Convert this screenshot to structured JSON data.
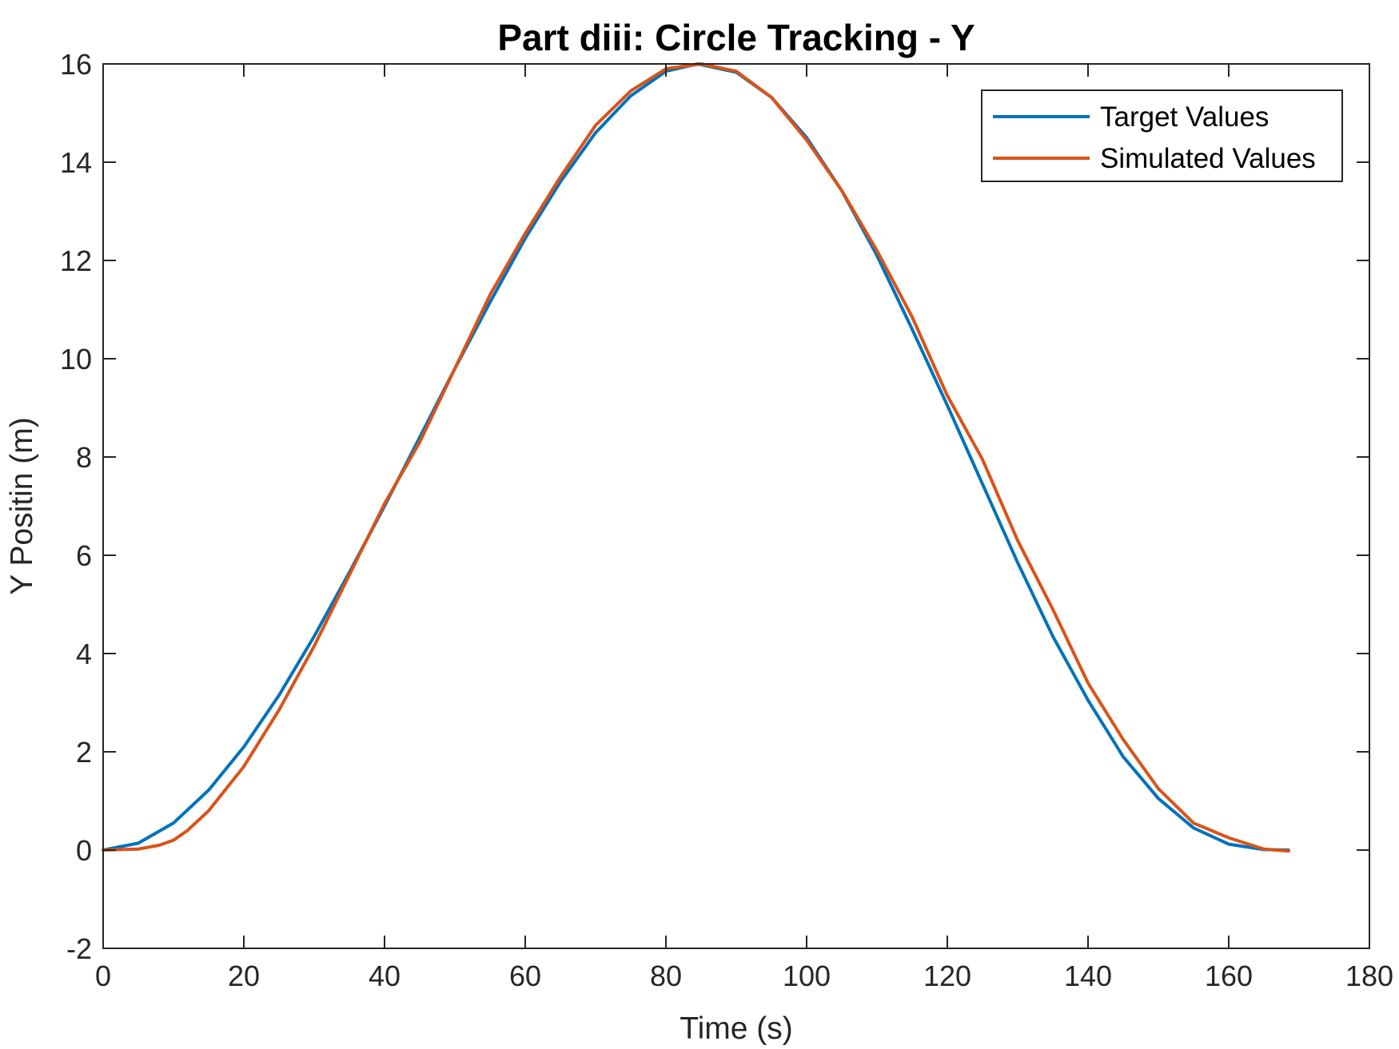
{
  "chart_data": {
    "type": "line",
    "title": "Part diii: Circle Tracking - Y",
    "xlabel": "Time (s)",
    "ylabel": "Y Positin (m)",
    "xlim": [
      0,
      180
    ],
    "ylim": [
      -2,
      16
    ],
    "xticks": [
      0,
      20,
      40,
      60,
      80,
      100,
      120,
      140,
      160,
      180
    ],
    "xtick_labels": [
      "0",
      "20",
      "40",
      "60",
      "80",
      "100",
      "120",
      "140",
      "160",
      "180"
    ],
    "yticks": [
      -2,
      0,
      2,
      4,
      6,
      8,
      10,
      12,
      14,
      16
    ],
    "ytick_labels": [
      "-2",
      "0",
      "2",
      "4",
      "6",
      "8",
      "10",
      "12",
      "14",
      "16"
    ],
    "grid": false,
    "legend_position": "top-right",
    "series": [
      {
        "name": "Target Values",
        "color": "#0072BD",
        "x": [
          0,
          5,
          10,
          15,
          20,
          25,
          30,
          35,
          40,
          45,
          50,
          55,
          60,
          65,
          70,
          75,
          80,
          84.5,
          90,
          95,
          100,
          105,
          110,
          115,
          120,
          125,
          130,
          135,
          140,
          145,
          150,
          155,
          160,
          165,
          168.5
        ],
        "y": [
          0.0,
          0.14,
          0.55,
          1.22,
          2.1,
          3.15,
          4.35,
          5.65,
          7.0,
          8.4,
          9.8,
          11.15,
          12.45,
          13.6,
          14.6,
          15.35,
          15.85,
          16.0,
          15.83,
          15.32,
          14.5,
          13.42,
          12.1,
          10.6,
          9.05,
          7.45,
          5.85,
          4.35,
          3.05,
          1.9,
          1.05,
          0.45,
          0.12,
          0.01,
          0.0
        ]
      },
      {
        "name": "Simulated Values",
        "color": "#D95319",
        "x": [
          0,
          5,
          8,
          10,
          12,
          15,
          20,
          25,
          30,
          35,
          40,
          45,
          50,
          55,
          60,
          65,
          70,
          75,
          80,
          85,
          90,
          95,
          100,
          105,
          110,
          115,
          120,
          125,
          130,
          135,
          140,
          145,
          150,
          155,
          160,
          165,
          168.5
        ],
        "y": [
          0.0,
          0.02,
          0.1,
          0.2,
          0.4,
          0.8,
          1.7,
          2.85,
          4.15,
          5.6,
          7.05,
          8.3,
          9.8,
          11.3,
          12.55,
          13.7,
          14.75,
          15.45,
          15.9,
          16.0,
          15.85,
          15.32,
          14.45,
          13.42,
          12.2,
          10.85,
          9.25,
          7.95,
          6.3,
          4.9,
          3.4,
          2.25,
          1.25,
          0.55,
          0.25,
          0.02,
          -0.02
        ]
      }
    ]
  }
}
